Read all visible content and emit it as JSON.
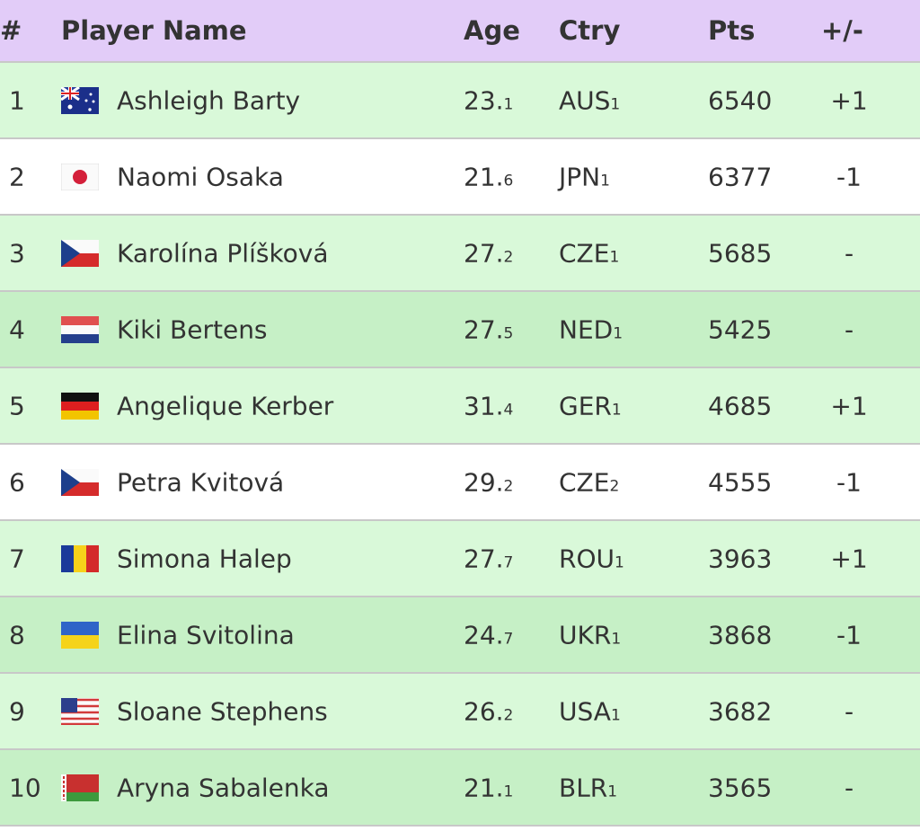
{
  "table": {
    "header": [
      "#",
      "Player Name",
      "Age",
      "Ctry",
      "Pts",
      "+/-"
    ],
    "rows": [
      {
        "rank": 1,
        "name": "Ashleigh Barty",
        "age": {
          "main": "23.",
          "sub": "1"
        },
        "ctry": {
          "main": "AUS",
          "sub": "1"
        },
        "pts": 6540,
        "change": "+1"
      },
      {
        "rank": 2,
        "name": "Naomi Osaka",
        "age": {
          "main": "21.",
          "sub": "6"
        },
        "ctry": {
          "main": "JPN",
          "sub": "1"
        },
        "pts": 6377,
        "change": "-1"
      },
      {
        "rank": 3,
        "name": "Karolína Plíšková",
        "age": {
          "main": "27.",
          "sub": "2"
        },
        "ctry": {
          "main": "CZE",
          "sub": "1"
        },
        "pts": 5685,
        "change": "-"
      },
      {
        "rank": 4,
        "name": "Kiki Bertens",
        "age": {
          "main": "27.",
          "sub": "5"
        },
        "ctry": {
          "main": "NED",
          "sub": "1"
        },
        "pts": 5425,
        "change": "-"
      },
      {
        "rank": 5,
        "name": "Angelique Kerber",
        "age": {
          "main": "31.",
          "sub": "4"
        },
        "ctry": {
          "main": "GER",
          "sub": "1"
        },
        "pts": 4685,
        "change": "+1"
      },
      {
        "rank": 6,
        "name": "Petra Kvitová",
        "age": {
          "main": "29.",
          "sub": "2"
        },
        "ctry": {
          "main": "CZE",
          "sub": "2"
        },
        "pts": 4555,
        "change": "-1"
      },
      {
        "rank": 7,
        "name": "Simona Halep",
        "age": {
          "main": "27.",
          "sub": "7"
        },
        "ctry": {
          "main": "ROU",
          "sub": "1"
        },
        "pts": 3963,
        "change": "+1"
      },
      {
        "rank": 8,
        "name": "Elina Svitolina",
        "age": {
          "main": "24.",
          "sub": "7"
        },
        "ctry": {
          "main": "UKR",
          "sub": "1"
        },
        "pts": 3868,
        "change": "-1"
      },
      {
        "rank": 9,
        "name": "Sloane Stephens",
        "age": {
          "main": "26.",
          "sub": "2"
        },
        "ctry": {
          "main": "USA",
          "sub": "1"
        },
        "pts": 3682,
        "change": "-"
      },
      {
        "rank": 10,
        "name": "Aryna Sabalenka",
        "age": {
          "main": "21.",
          "sub": "1"
        },
        "ctry": {
          "main": "BLR",
          "sub": "1"
        },
        "pts": 3565,
        "change": "-"
      }
    ]
  }
}
